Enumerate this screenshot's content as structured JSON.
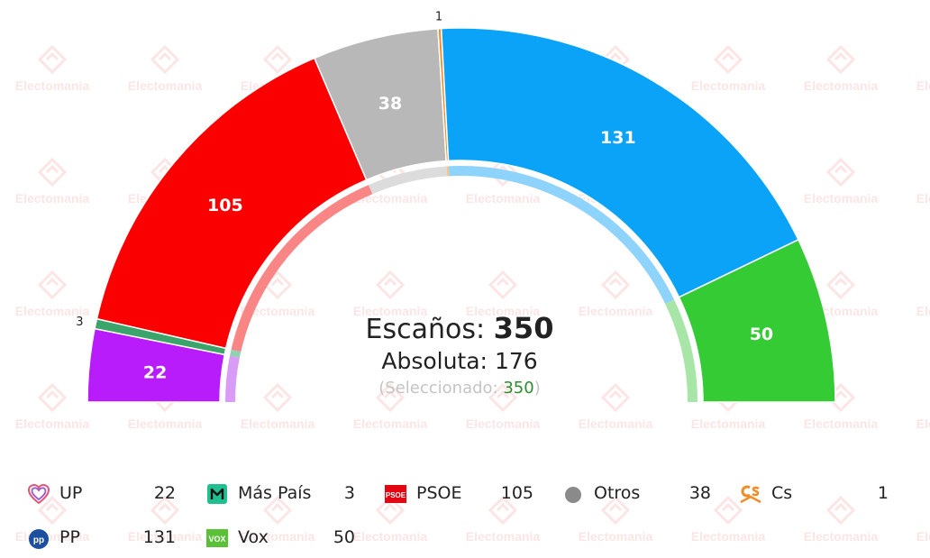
{
  "header": {
    "total_label": "Escaños:",
    "total_value": "350",
    "majority_label": "Absoluta:",
    "majority_value": "176",
    "selected_label": "(Seleccionado:",
    "selected_value": "350",
    "selected_close": ")"
  },
  "watermark": {
    "text": "Electomania"
  },
  "chart_data": {
    "type": "pie",
    "subtype": "parliament-hemicycle",
    "total_seats": 350,
    "majority": 176,
    "series": [
      {
        "name": "UP",
        "value": 22,
        "color": "#b81cfa",
        "inner_color": "#d89cf6"
      },
      {
        "name": "Más País",
        "value": 3,
        "color": "#3aa46a",
        "inner_color": "#8fd1b0"
      },
      {
        "name": "PSOE",
        "value": 105,
        "color": "#fb0000",
        "inner_color": "#f98585"
      },
      {
        "name": "Otros",
        "value": 38,
        "color": "#b8b8b8",
        "inner_color": "#dcdcdc"
      },
      {
        "name": "Cs",
        "value": 1,
        "color": "#f28c28",
        "inner_color": "#f7c38e"
      },
      {
        "name": "PP",
        "value": 131,
        "color": "#0aa3f8",
        "inner_color": "#8ed3fb"
      },
      {
        "name": "Vox",
        "value": 50,
        "color": "#35cb35",
        "inner_color": "#a8e6a8"
      }
    ]
  },
  "legend": [
    {
      "name": "UP",
      "value": "22",
      "icon": "up-heart-icon"
    },
    {
      "name": "Más País",
      "value": "3",
      "icon": "mas-pais-logo-icon"
    },
    {
      "name": "PSOE",
      "value": "105",
      "icon": "psoe-logo-icon"
    },
    {
      "name": "Otros",
      "value": "38",
      "icon": "gray-dot-icon"
    },
    {
      "name": "Cs",
      "value": "1",
      "icon": "cs-logo-icon"
    },
    {
      "name": "PP",
      "value": "131",
      "icon": "pp-logo-icon"
    },
    {
      "name": "Vox",
      "value": "50",
      "icon": "vox-logo-icon"
    }
  ]
}
